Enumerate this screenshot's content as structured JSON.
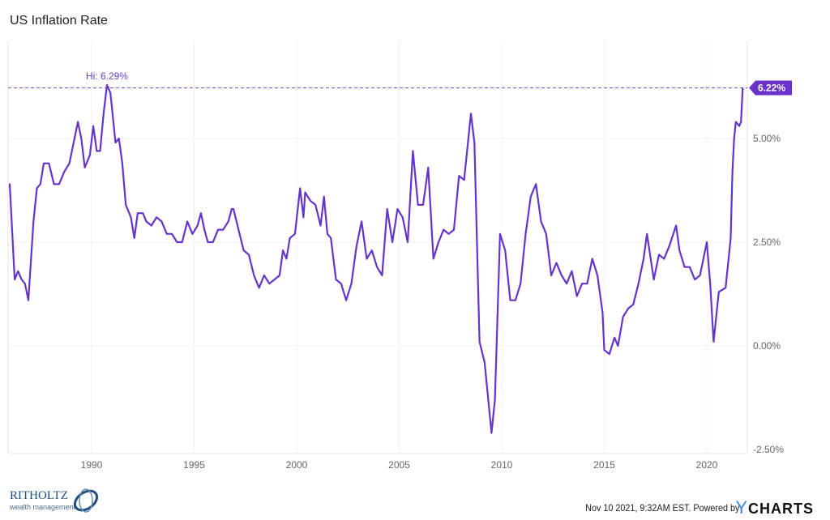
{
  "chart_data": {
    "type": "line",
    "title": "US Inflation Rate",
    "xlabel": "",
    "ylabel": "",
    "x_ticks": [
      "1990",
      "1995",
      "2000",
      "2005",
      "2010",
      "2015",
      "2020"
    ],
    "y_ticks": [
      "5.00%",
      "2.50%",
      "0.00%",
      "-2.50%"
    ],
    "y_tick_values": [
      5,
      2.5,
      0,
      -2.5
    ],
    "xlim": [
      "1985-12",
      "2021-10"
    ],
    "ylim": [
      -2.6,
      7.4
    ],
    "grid": true,
    "y_axis_side": "right",
    "color": "#6633cc",
    "high_annotation": {
      "label": "Hi: 6.29%",
      "date": "1990-10",
      "value": 6.29
    },
    "latest": {
      "label": "6.22%",
      "value": 6.22
    },
    "series": [
      {
        "points": [
          [
            "1985-12",
            3.8
          ],
          [
            "1986-01",
            3.9
          ],
          [
            "1986-04",
            1.6
          ],
          [
            "1986-06",
            1.8
          ],
          [
            "1986-08",
            1.6
          ],
          [
            "1986-10",
            1.5
          ],
          [
            "1986-12",
            1.1
          ],
          [
            "1987-03",
            3.0
          ],
          [
            "1987-05",
            3.8
          ],
          [
            "1987-07",
            3.9
          ],
          [
            "1987-09",
            4.4
          ],
          [
            "1987-12",
            4.4
          ],
          [
            "1988-03",
            3.9
          ],
          [
            "1988-06",
            3.9
          ],
          [
            "1988-09",
            4.2
          ],
          [
            "1988-12",
            4.4
          ],
          [
            "1989-03",
            5.0
          ],
          [
            "1989-05",
            5.4
          ],
          [
            "1989-07",
            5.0
          ],
          [
            "1989-09",
            4.3
          ],
          [
            "1989-12",
            4.6
          ],
          [
            "1990-02",
            5.3
          ],
          [
            "1990-04",
            4.7
          ],
          [
            "1990-06",
            4.7
          ],
          [
            "1990-08",
            5.6
          ],
          [
            "1990-10",
            6.29
          ],
          [
            "1990-12",
            6.1
          ],
          [
            "1991-03",
            4.9
          ],
          [
            "1991-05",
            5.0
          ],
          [
            "1991-07",
            4.4
          ],
          [
            "1991-09",
            3.4
          ],
          [
            "1991-12",
            3.1
          ],
          [
            "1992-02",
            2.6
          ],
          [
            "1992-04",
            3.2
          ],
          [
            "1992-07",
            3.2
          ],
          [
            "1992-09",
            3.0
          ],
          [
            "1992-12",
            2.9
          ],
          [
            "1993-03",
            3.1
          ],
          [
            "1993-06",
            3.0
          ],
          [
            "1993-09",
            2.7
          ],
          [
            "1993-12",
            2.7
          ],
          [
            "1994-03",
            2.5
          ],
          [
            "1994-06",
            2.5
          ],
          [
            "1994-09",
            3.0
          ],
          [
            "1994-12",
            2.7
          ],
          [
            "1995-03",
            2.9
          ],
          [
            "1995-05",
            3.2
          ],
          [
            "1995-07",
            2.8
          ],
          [
            "1995-09",
            2.5
          ],
          [
            "1995-12",
            2.5
          ],
          [
            "1996-03",
            2.8
          ],
          [
            "1996-06",
            2.8
          ],
          [
            "1996-09",
            3.0
          ],
          [
            "1996-11",
            3.3
          ],
          [
            "1996-12",
            3.3
          ],
          [
            "1997-03",
            2.8
          ],
          [
            "1997-06",
            2.3
          ],
          [
            "1997-09",
            2.2
          ],
          [
            "1997-12",
            1.7
          ],
          [
            "1998-03",
            1.4
          ],
          [
            "1998-06",
            1.7
          ],
          [
            "1998-09",
            1.5
          ],
          [
            "1998-12",
            1.6
          ],
          [
            "1999-03",
            1.7
          ],
          [
            "1999-05",
            2.3
          ],
          [
            "1999-07",
            2.1
          ],
          [
            "1999-09",
            2.6
          ],
          [
            "1999-12",
            2.7
          ],
          [
            "2000-03",
            3.8
          ],
          [
            "2000-05",
            3.1
          ],
          [
            "2000-06",
            3.7
          ],
          [
            "2000-09",
            3.5
          ],
          [
            "2000-12",
            3.4
          ],
          [
            "2001-03",
            2.9
          ],
          [
            "2001-05",
            3.6
          ],
          [
            "2001-07",
            2.7
          ],
          [
            "2001-09",
            2.6
          ],
          [
            "2001-12",
            1.6
          ],
          [
            "2002-03",
            1.5
          ],
          [
            "2002-06",
            1.1
          ],
          [
            "2002-09",
            1.5
          ],
          [
            "2002-12",
            2.4
          ],
          [
            "2003-03",
            3.0
          ],
          [
            "2003-06",
            2.1
          ],
          [
            "2003-09",
            2.3
          ],
          [
            "2003-12",
            1.9
          ],
          [
            "2004-03",
            1.7
          ],
          [
            "2004-06",
            3.3
          ],
          [
            "2004-09",
            2.5
          ],
          [
            "2004-12",
            3.3
          ],
          [
            "2005-03",
            3.1
          ],
          [
            "2005-06",
            2.5
          ],
          [
            "2005-09",
            4.7
          ],
          [
            "2005-12",
            3.4
          ],
          [
            "2006-03",
            3.4
          ],
          [
            "2006-06",
            4.3
          ],
          [
            "2006-09",
            2.1
          ],
          [
            "2006-12",
            2.5
          ],
          [
            "2007-03",
            2.8
          ],
          [
            "2007-06",
            2.7
          ],
          [
            "2007-09",
            2.8
          ],
          [
            "2007-12",
            4.1
          ],
          [
            "2008-03",
            4.0
          ],
          [
            "2008-07",
            5.6
          ],
          [
            "2008-09",
            4.9
          ],
          [
            "2008-12",
            0.1
          ],
          [
            "2009-03",
            -0.4
          ],
          [
            "2009-07",
            -2.1
          ],
          [
            "2009-09",
            -1.3
          ],
          [
            "2009-12",
            2.7
          ],
          [
            "2010-03",
            2.3
          ],
          [
            "2010-06",
            1.1
          ],
          [
            "2010-09",
            1.1
          ],
          [
            "2010-12",
            1.5
          ],
          [
            "2011-03",
            2.7
          ],
          [
            "2011-06",
            3.6
          ],
          [
            "2011-09",
            3.9
          ],
          [
            "2011-12",
            3.0
          ],
          [
            "2012-03",
            2.7
          ],
          [
            "2012-06",
            1.7
          ],
          [
            "2012-09",
            2.0
          ],
          [
            "2012-12",
            1.7
          ],
          [
            "2013-03",
            1.5
          ],
          [
            "2013-06",
            1.8
          ],
          [
            "2013-09",
            1.2
          ],
          [
            "2013-12",
            1.5
          ],
          [
            "2014-03",
            1.5
          ],
          [
            "2014-06",
            2.1
          ],
          [
            "2014-09",
            1.7
          ],
          [
            "2014-12",
            0.8
          ],
          [
            "2015-01",
            -0.1
          ],
          [
            "2015-04",
            -0.2
          ],
          [
            "2015-07",
            0.2
          ],
          [
            "2015-09",
            0.0
          ],
          [
            "2015-12",
            0.7
          ],
          [
            "2016-03",
            0.9
          ],
          [
            "2016-06",
            1.0
          ],
          [
            "2016-09",
            1.5
          ],
          [
            "2016-12",
            2.1
          ],
          [
            "2017-02",
            2.7
          ],
          [
            "2017-06",
            1.6
          ],
          [
            "2017-09",
            2.2
          ],
          [
            "2017-12",
            2.1
          ],
          [
            "2018-03",
            2.4
          ],
          [
            "2018-07",
            2.9
          ],
          [
            "2018-09",
            2.3
          ],
          [
            "2018-12",
            1.9
          ],
          [
            "2019-03",
            1.9
          ],
          [
            "2019-06",
            1.6
          ],
          [
            "2019-09",
            1.7
          ],
          [
            "2019-12",
            2.3
          ],
          [
            "2020-01",
            2.5
          ],
          [
            "2020-03",
            1.5
          ],
          [
            "2020-05",
            0.1
          ],
          [
            "2020-08",
            1.3
          ],
          [
            "2020-12",
            1.4
          ],
          [
            "2021-03",
            2.6
          ],
          [
            "2021-04",
            4.2
          ],
          [
            "2021-05",
            5.0
          ],
          [
            "2021-06",
            5.4
          ],
          [
            "2021-08",
            5.3
          ],
          [
            "2021-09",
            5.4
          ],
          [
            "2021-10",
            6.22
          ]
        ]
      }
    ]
  },
  "footer": {
    "timestamp": "Nov 10 2021, 9:32AM EST. Powered by",
    "ycharts_y": "Y",
    "ycharts_rest": "CHARTS",
    "logo_name": "RITHOLTZ",
    "logo_sub": "wealth management"
  }
}
